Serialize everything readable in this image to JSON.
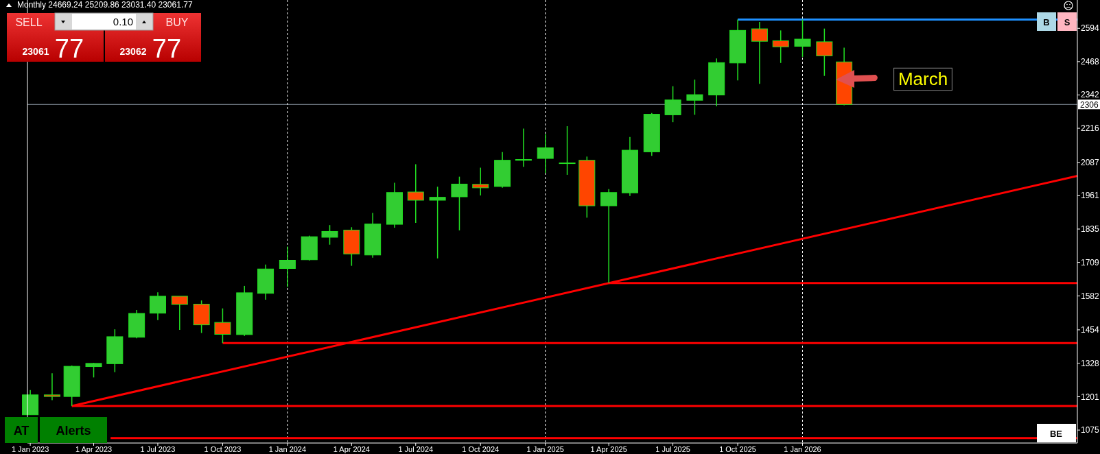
{
  "chart_data": {
    "type": "candlestick",
    "title": "Monthly  24669.24 25209.86 23031.40 23061.77",
    "x": [
      "2023-01",
      "2023-02",
      "2023-03",
      "2023-04",
      "2023-05",
      "2023-06",
      "2023-07",
      "2023-08",
      "2023-09",
      "2023-10",
      "2023-11",
      "2023-12",
      "2024-01",
      "2024-02",
      "2024-03",
      "2024-04",
      "2024-05",
      "2024-06",
      "2024-07",
      "2024-08",
      "2024-09",
      "2024-10",
      "2024-11",
      "2024-12",
      "2025-01",
      "2025-02",
      "2025-03",
      "2025-04",
      "2025-05",
      "2025-06",
      "2025-07",
      "2025-08",
      "2025-09",
      "2025-10",
      "2025-11",
      "2025-12",
      "2026-01",
      "2026-02",
      "2026-03"
    ],
    "ohlc": [
      [
        1133,
        1226,
        1133,
        1208
      ],
      [
        1208,
        1290,
        1188,
        1202
      ],
      [
        1202,
        1319,
        1166,
        1316
      ],
      [
        1315,
        1329,
        1274,
        1327
      ],
      [
        1326,
        1456,
        1294,
        1428
      ],
      [
        1426,
        1529,
        1422,
        1516
      ],
      [
        1517,
        1596,
        1491,
        1581
      ],
      [
        1581,
        1581,
        1454,
        1550
      ],
      [
        1551,
        1565,
        1442,
        1473
      ],
      [
        1482,
        1535,
        1404,
        1437
      ],
      [
        1436,
        1620,
        1431,
        1594
      ],
      [
        1592,
        1701,
        1568,
        1684
      ],
      [
        1686,
        1769,
        1616,
        1717
      ],
      [
        1719,
        1810,
        1716,
        1806
      ],
      [
        1804,
        1850,
        1776,
        1826
      ],
      [
        1831,
        1842,
        1696,
        1741
      ],
      [
        1737,
        1896,
        1727,
        1854
      ],
      [
        1853,
        2010,
        1840,
        1973
      ],
      [
        1975,
        2080,
        1858,
        1944
      ],
      [
        1944,
        1995,
        1724,
        1955
      ],
      [
        1957,
        2033,
        1830,
        2005
      ],
      [
        2004,
        2067,
        1962,
        1991
      ],
      [
        1996,
        2126,
        1991,
        2095
      ],
      [
        2095,
        2215,
        2070,
        2098
      ],
      [
        2102,
        2194,
        2047,
        2142
      ],
      [
        2085,
        2224,
        2040,
        2084
      ],
      [
        2095,
        2109,
        1878,
        1923
      ],
      [
        1923,
        1986,
        1631,
        1973
      ],
      [
        1972,
        2183,
        1960,
        2133
      ],
      [
        2127,
        2274,
        2112,
        2269
      ],
      [
        2267,
        2375,
        2239,
        2323
      ],
      [
        2322,
        2400,
        2267,
        2343
      ],
      [
        2342,
        2480,
        2299,
        2464
      ],
      [
        2463,
        2627,
        2397,
        2586
      ],
      [
        2592,
        2618,
        2384,
        2545
      ],
      [
        2547,
        2586,
        2463,
        2524
      ],
      [
        2526,
        2627,
        2486,
        2553
      ],
      [
        2543,
        2593,
        2414,
        2490
      ],
      [
        2466.924,
        2520.986,
        2303.14,
        2306.177
      ]
    ],
    "colors": [
      "#32cd32",
      "#ff4500",
      "#32cd32",
      "#32cd32",
      "#32cd32",
      "#32cd32",
      "#32cd32",
      "#ff4500",
      "#ff4500",
      "#ff4500",
      "#32cd32",
      "#32cd32",
      "#32cd32",
      "#32cd32",
      "#32cd32",
      "#ff4500",
      "#32cd32",
      "#32cd32",
      "#ff4500",
      "#32cd32",
      "#32cd32",
      "#ff4500",
      "#32cd32",
      "#32cd32",
      "#32cd32",
      "#ff4500",
      "#ff4500",
      "#32cd32",
      "#32cd32",
      "#32cd32",
      "#32cd32",
      "#32cd32",
      "#32cd32",
      "#32cd32",
      "#ff4500",
      "#ff4500",
      "#32cd32",
      "#ff4500",
      "#ff4500"
    ],
    "series": [
      {
        "type": "line",
        "color": "#ff0000",
        "x": [
          "2023-03",
          "2027-01-26"
        ],
        "values": [
          1166,
          2036
        ]
      },
      {
        "type": "line",
        "color": "#ff0000",
        "x": [
          "2023-03",
          "2027-01-26"
        ],
        "values": [
          1166,
          1166
        ]
      },
      {
        "type": "line",
        "color": "#ff0000",
        "x": [
          "2023-10",
          "2027-01-26"
        ],
        "values": [
          1404,
          1404
        ]
      },
      {
        "type": "line",
        "color": "#ff0000",
        "x": [
          "2025-04",
          "2027-01-26"
        ],
        "values": [
          1631,
          1631
        ]
      },
      {
        "type": "line",
        "color": "#ff0000",
        "x": [
          "2023-04-25",
          "2027-01-26"
        ],
        "values": [
          1045,
          1045
        ]
      },
      {
        "type": "line",
        "color": "#1e90ff",
        "x": [
          "2025-10",
          "2027-01-26"
        ],
        "values": [
          2627,
          2627
        ]
      }
    ],
    "xlim": [
      "2022-12-28",
      "2027-01-26"
    ],
    "xticks": [
      {
        "value": "2023-01-01",
        "label": "1 Jan 2023"
      },
      {
        "value": "2023-04-01",
        "label": "1 Apr 2023"
      },
      {
        "value": "2023-07-01",
        "label": "1 Jul 2023"
      },
      {
        "value": "2023-10-01",
        "label": "1 Oct 2023"
      },
      {
        "value": "2024-01-01",
        "label": "1 Jan 2024"
      },
      {
        "value": "2024-04-01",
        "label": "1 Apr 2024"
      },
      {
        "value": "2024-07-01",
        "label": "1 Jul 2024"
      },
      {
        "value": "2024-10-01",
        "label": "1 Oct 2024"
      },
      {
        "value": "2025-01-01",
        "label": "1 Jan 2025"
      },
      {
        "value": "2025-04-01",
        "label": "1 Apr 2025"
      },
      {
        "value": "2025-07-01",
        "label": "1 Jul 2025"
      },
      {
        "value": "2025-10-01",
        "label": "1 Oct 2025"
      },
      {
        "value": "2026-01-01",
        "label": "1 Jan 2026"
      }
    ],
    "ylim": [
      1026,
      2701
    ],
    "yticks": [
      2594,
      2468,
      2342,
      2216,
      2087,
      1961,
      1835,
      1709,
      1582,
      1454,
      1328,
      1201,
      1075
    ],
    "ref_lines": [
      {
        "axis": "y",
        "value": 2306.177,
        "label": "2306",
        "color": "#8a96a3"
      },
      {
        "axis": "x",
        "value": "2024-01-01",
        "color": "#ffffff",
        "line_style": "dashed"
      },
      {
        "axis": "x",
        "value": "2025-01-01",
        "color": "#ffffff",
        "line_style": "dashed"
      },
      {
        "axis": "x",
        "value": "2026-01-01",
        "color": "#ffffff",
        "line_style": "dashed"
      }
    ],
    "annotations": [
      "March",
      "SELL",
      "0.10",
      "BUY",
      "23061",
      "77",
      "23062",
      "77",
      "AT",
      "Alerts",
      "B",
      "S",
      "BE"
    ]
  }
}
